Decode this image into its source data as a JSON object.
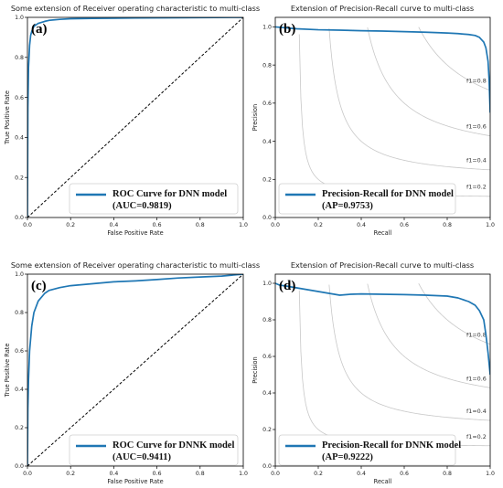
{
  "chart_data": [
    {
      "panel": "(a)",
      "type": "line",
      "title": "Some extension of Receiver operating characteristic to multi-class",
      "xlabel": "False Positive Rate",
      "ylabel": "True Positive Rate",
      "xlim": [
        0,
        1
      ],
      "ylim": [
        0,
        1
      ],
      "xticks": [
        "0.0",
        "0.2",
        "0.4",
        "0.6",
        "0.8",
        "1.0"
      ],
      "yticks": [
        "0.0",
        "0.2",
        "0.4",
        "0.6",
        "0.8",
        "1.0"
      ],
      "legend_position": "lower-right",
      "legend": [
        "ROC Curve for DNN model",
        "(AUC=0.9819)"
      ],
      "series": [
        {
          "name": "ROC Curve for DNN model",
          "style": "solid",
          "color": "#1f77b4",
          "x": [
            0,
            0.002,
            0.005,
            0.01,
            0.015,
            0.02,
            0.03,
            0.05,
            0.08,
            0.1,
            0.15,
            0.2,
            0.3,
            0.5,
            0.7,
            1.0
          ],
          "y": [
            0,
            0.55,
            0.75,
            0.86,
            0.91,
            0.93,
            0.955,
            0.97,
            0.98,
            0.985,
            0.99,
            0.993,
            0.995,
            0.997,
            0.998,
            1.0
          ]
        },
        {
          "name": "",
          "style": "dashed",
          "color": "#000000",
          "x": [
            0,
            1
          ],
          "y": [
            0,
            1
          ]
        }
      ]
    },
    {
      "panel": "(b)",
      "type": "line",
      "title": "Extension of Precision-Recall curve to multi-class",
      "xlabel": "Recall",
      "ylabel": "Precision",
      "xlim": [
        0,
        1
      ],
      "ylim": [
        0,
        1.05
      ],
      "xticks": [
        "0.0",
        "0.2",
        "0.4",
        "0.6",
        "0.8",
        "1.0"
      ],
      "yticks": [
        "0.0",
        "0.2",
        "0.4",
        "0.6",
        "0.8",
        "1.0"
      ],
      "iso_f1": [
        0.2,
        0.4,
        0.6,
        0.8
      ],
      "iso_labels": [
        "f1=0.2",
        "f1=0.4",
        "f1=0.6",
        "f1=0.8"
      ],
      "legend_position": "lower-right",
      "legend": [
        "Precision-Recall  for DNN model",
        "(AP=0.9753)"
      ],
      "series": [
        {
          "name": "Precision-Recall  for DNN model",
          "style": "solid",
          "color": "#1f77b4",
          "x": [
            0,
            0.1,
            0.2,
            0.3,
            0.4,
            0.5,
            0.6,
            0.7,
            0.8,
            0.85,
            0.9,
            0.93,
            0.95,
            0.97,
            0.98,
            0.99,
            0.995,
            1.0
          ],
          "y": [
            1.0,
            0.99,
            0.985,
            0.983,
            0.98,
            0.978,
            0.975,
            0.972,
            0.968,
            0.965,
            0.96,
            0.955,
            0.945,
            0.92,
            0.89,
            0.82,
            0.72,
            0.55
          ]
        }
      ]
    },
    {
      "panel": "(c)",
      "type": "line",
      "title": "Some extension of Receiver operating characteristic to multi-class",
      "xlabel": "False Positive Rate",
      "ylabel": "True Positive Rate",
      "xlim": [
        0,
        1
      ],
      "ylim": [
        0,
        1
      ],
      "xticks": [
        "0.0",
        "0.2",
        "0.4",
        "0.6",
        "0.8",
        "1.0"
      ],
      "yticks": [
        "0.0",
        "0.2",
        "0.4",
        "0.6",
        "0.8",
        "1.0"
      ],
      "legend_position": "lower-right",
      "legend": [
        "ROC Curve for DNNK model",
        "(AUC=0.9411)"
      ],
      "series": [
        {
          "name": "ROC Curve for DNNK model",
          "style": "solid",
          "color": "#1f77b4",
          "x": [
            0,
            0.002,
            0.005,
            0.01,
            0.02,
            0.03,
            0.05,
            0.08,
            0.1,
            0.15,
            0.2,
            0.3,
            0.4,
            0.5,
            0.6,
            0.7,
            0.8,
            0.9,
            1.0
          ],
          "y": [
            0,
            0.3,
            0.45,
            0.6,
            0.73,
            0.8,
            0.86,
            0.9,
            0.915,
            0.93,
            0.94,
            0.95,
            0.96,
            0.965,
            0.972,
            0.98,
            0.985,
            0.99,
            1.0
          ]
        },
        {
          "name": "",
          "style": "dashed",
          "color": "#000000",
          "x": [
            0,
            1
          ],
          "y": [
            0,
            1
          ]
        }
      ]
    },
    {
      "panel": "(d)",
      "type": "line",
      "title": "Extension of Precision-Recall curve to multi-class",
      "xlabel": "Recall",
      "ylabel": "Precision",
      "xlim": [
        0,
        1
      ],
      "ylim": [
        0,
        1.05
      ],
      "xticks": [
        "0.0",
        "0.2",
        "0.4",
        "0.6",
        "0.8",
        "1.0"
      ],
      "yticks": [
        "0.0",
        "0.2",
        "0.4",
        "0.6",
        "0.8",
        "1.0"
      ],
      "iso_f1": [
        0.2,
        0.4,
        0.6,
        0.8
      ],
      "iso_labels": [
        "f1=0.2",
        "f1=0.4",
        "f1=0.6",
        "f1=0.8"
      ],
      "legend_position": "lower-right",
      "legend": [
        "Precision-Recall  for DNNK model",
        "(AP=0.9222)"
      ],
      "series": [
        {
          "name": "Precision-Recall  for DNNK model",
          "style": "solid",
          "color": "#1f77b4",
          "x": [
            0,
            0.02,
            0.05,
            0.1,
            0.15,
            0.2,
            0.25,
            0.3,
            0.35,
            0.4,
            0.5,
            0.6,
            0.7,
            0.8,
            0.85,
            0.9,
            0.93,
            0.95,
            0.97,
            0.98,
            0.99,
            1.0
          ],
          "y": [
            1.0,
            0.99,
            0.985,
            0.975,
            0.965,
            0.955,
            0.945,
            0.935,
            0.94,
            0.942,
            0.94,
            0.938,
            0.935,
            0.93,
            0.92,
            0.9,
            0.88,
            0.85,
            0.8,
            0.72,
            0.62,
            0.5
          ]
        }
      ]
    }
  ]
}
